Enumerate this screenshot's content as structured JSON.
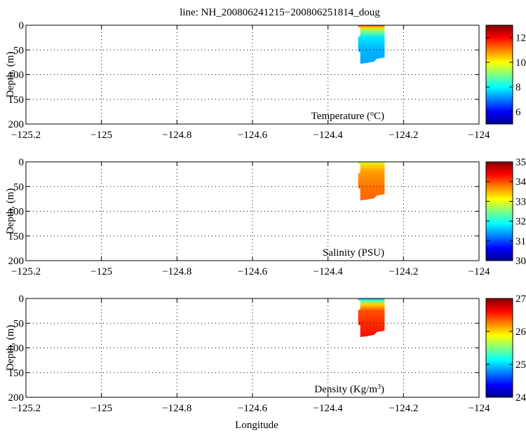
{
  "title": "line: NH_200806241215−200806251814_doug",
  "xlabel": "Longitude",
  "colors": {
    "colormap": [
      "#00008f",
      "#0000ff",
      "#0080ff",
      "#00ffff",
      "#80ff80",
      "#ffff00",
      "#ff8000",
      "#ff0000",
      "#800000"
    ]
  },
  "chart_data": [
    {
      "type": "heatmap",
      "panel_label": "Temperature",
      "panel_label_unit_base": "C",
      "panel_label_unit_sup": "o",
      "ylabel": "Depth, (m)",
      "xlim": [
        -125.2,
        -124
      ],
      "ylim": [
        200,
        0
      ],
      "x_ticks": [
        "−125.2",
        "−125",
        "−124.8",
        "−124.6",
        "−124.4",
        "−124.2",
        "−124"
      ],
      "x_tick_values": [
        -125.2,
        -125,
        -124.8,
        -124.6,
        -124.4,
        -124.2,
        -124
      ],
      "y_ticks": [
        "0",
        "50",
        "100",
        "150",
        "200"
      ],
      "y_tick_values": [
        0,
        50,
        100,
        150,
        200
      ],
      "grid": true,
      "colorbar": {
        "range": [
          5,
          13
        ],
        "ticks": [
          "6",
          "8",
          "10",
          "12"
        ],
        "tick_values": [
          6,
          8,
          10,
          12
        ]
      },
      "data_extent": {
        "lon": [
          -124.32,
          -124.25
        ],
        "depth": [
          0,
          78
        ]
      },
      "profile": [
        {
          "depth": 0,
          "value": 11.5
        },
        {
          "depth": 5,
          "value": 10.3
        },
        {
          "depth": 12,
          "value": 9.0
        },
        {
          "depth": 25,
          "value": 7.8
        },
        {
          "depth": 50,
          "value": 7.4
        },
        {
          "depth": 78,
          "value": 7.3
        }
      ]
    },
    {
      "type": "heatmap",
      "panel_label": "Salinity (PSU)",
      "ylabel": "Depth, (m)",
      "xlim": [
        -125.2,
        -124
      ],
      "ylim": [
        200,
        0
      ],
      "x_ticks": [
        "−125.2",
        "−125",
        "−124.8",
        "−124.6",
        "−124.4",
        "−124.2",
        "−124"
      ],
      "x_tick_values": [
        -125.2,
        -125,
        -124.8,
        -124.6,
        -124.4,
        -124.2,
        -124
      ],
      "y_ticks": [
        "0",
        "50",
        "100",
        "150",
        "200"
      ],
      "y_tick_values": [
        0,
        50,
        100,
        150,
        200
      ],
      "grid": true,
      "colorbar": {
        "range": [
          30,
          35
        ],
        "ticks": [
          "30",
          "31",
          "32",
          "33",
          "34",
          "35"
        ],
        "tick_values": [
          30,
          31,
          32,
          33,
          34,
          35
        ]
      },
      "data_extent": {
        "lon": [
          -124.32,
          -124.25
        ],
        "depth": [
          0,
          78
        ]
      },
      "profile": [
        {
          "depth": 0,
          "value": 32.8
        },
        {
          "depth": 6,
          "value": 33.3
        },
        {
          "depth": 20,
          "value": 33.6
        },
        {
          "depth": 50,
          "value": 33.8
        },
        {
          "depth": 78,
          "value": 33.9
        }
      ]
    },
    {
      "type": "heatmap",
      "panel_label": "Density (Kg/m",
      "panel_label_sup": "3",
      "panel_label_end": ")",
      "ylabel": "Depth, (m)",
      "xlim": [
        -125.2,
        -124
      ],
      "ylim": [
        200,
        0
      ],
      "x_ticks": [
        "−125.2",
        "−125",
        "−124.8",
        "−124.6",
        "−124.4",
        "−124.2",
        "−124"
      ],
      "x_tick_values": [
        -125.2,
        -125,
        -124.8,
        -124.6,
        -124.4,
        -124.2,
        -124
      ],
      "y_ticks": [
        "0",
        "50",
        "100",
        "150",
        "200"
      ],
      "y_tick_values": [
        0,
        50,
        100,
        150,
        200
      ],
      "grid": true,
      "colorbar": {
        "range": [
          24,
          27
        ],
        "ticks": [
          "24",
          "25",
          "26",
          "27"
        ],
        "tick_values": [
          24,
          25,
          26,
          27
        ]
      },
      "data_extent": {
        "lon": [
          -124.32,
          -124.25
        ],
        "depth": [
          0,
          78
        ]
      },
      "profile": [
        {
          "depth": 0,
          "value": 24.9
        },
        {
          "depth": 5,
          "value": 25.4
        },
        {
          "depth": 12,
          "value": 26.0
        },
        {
          "depth": 25,
          "value": 26.4
        },
        {
          "depth": 50,
          "value": 26.5
        },
        {
          "depth": 78,
          "value": 26.6
        }
      ]
    }
  ]
}
